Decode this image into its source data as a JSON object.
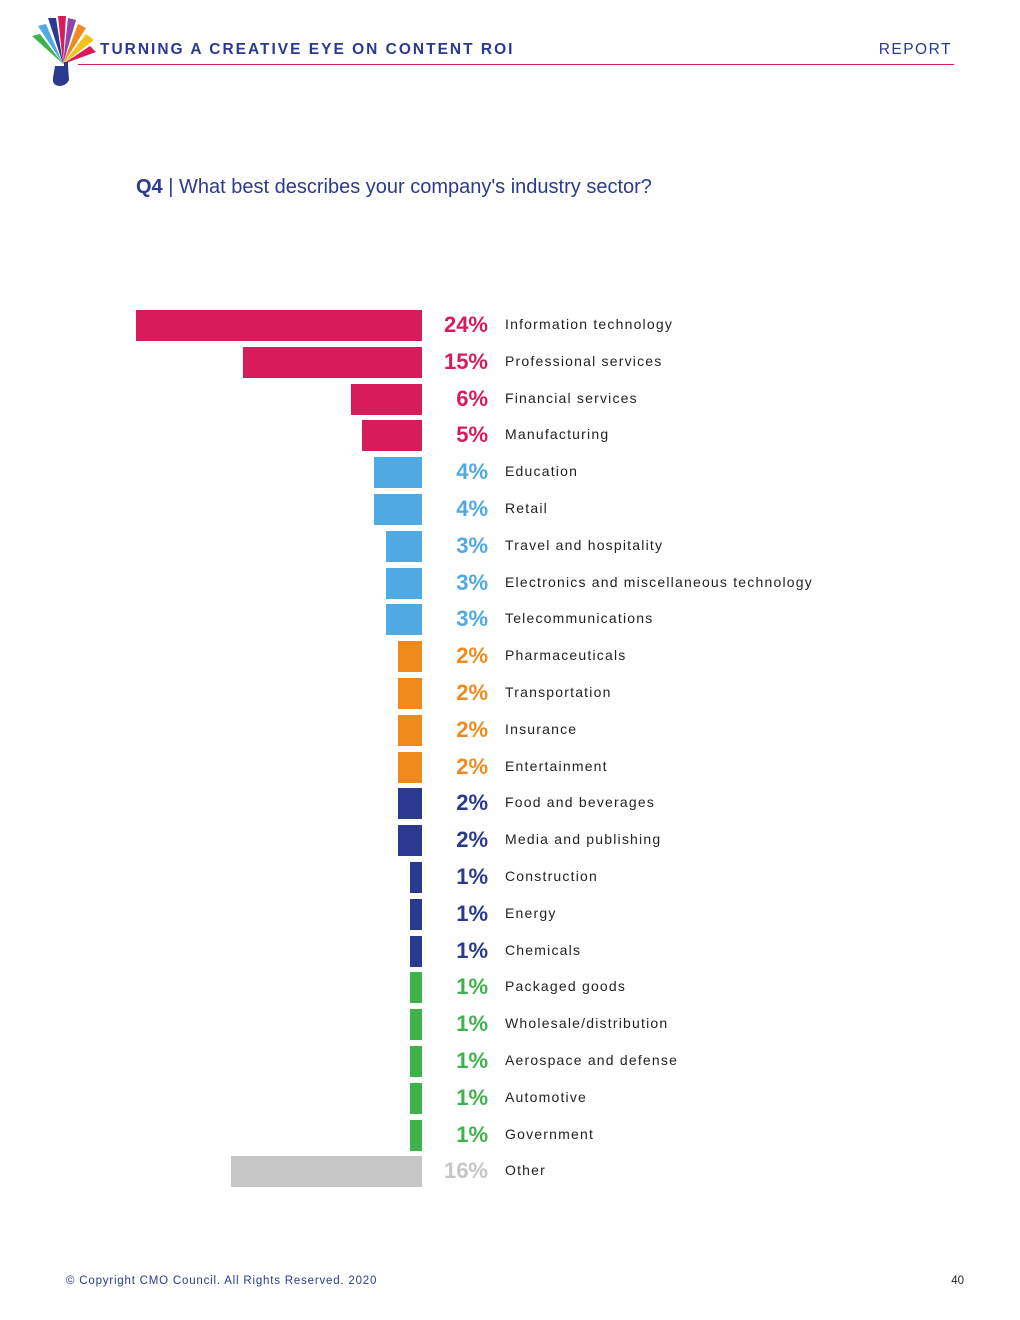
{
  "header": {
    "title": "TURNING A CREATIVE EYE ON CONTENT ROI",
    "section": "REPORT"
  },
  "question": {
    "number": "Q4",
    "separator": " | ",
    "text": "What best describes your company's industry sector?"
  },
  "footer": {
    "copyright": "© Copyright CMO Council. All Rights Reserved. 2020",
    "page": "40"
  },
  "colors": {
    "pink": "#d81b5a",
    "light_blue": "#4fa9e3",
    "orange": "#f08a1c",
    "navy": "#2b3990",
    "green": "#3fb24b",
    "gray": "#c6c6c6"
  },
  "logo": {
    "icon": "peacock-fan-logo-icon"
  },
  "chart_data": {
    "type": "bar",
    "orientation": "horizontal",
    "title": "What best describes your company's industry sector?",
    "unit": "%",
    "categories": [
      "Information technology",
      "Professional services",
      "Financial services",
      "Manufacturing",
      "Education",
      "Retail",
      "Travel and hospitality",
      "Electronics and miscellaneous technology",
      "Telecommunications",
      "Pharmaceuticals",
      "Transportation",
      "Insurance",
      "Entertainment",
      "Food and beverages",
      "Media and publishing",
      "Construction",
      "Energy",
      "Chemicals",
      "Packaged goods",
      "Wholesale/distribution",
      "Aerospace and defense",
      "Automotive",
      "Government",
      "Other"
    ],
    "values": [
      24,
      15,
      6,
      5,
      4,
      4,
      3,
      3,
      3,
      2,
      2,
      2,
      2,
      2,
      2,
      1,
      1,
      1,
      1,
      1,
      1,
      1,
      1,
      16
    ],
    "labels": [
      "24%",
      "15%",
      "6%",
      "5%",
      "4%",
      "4%",
      "3%",
      "3%",
      "3%",
      "2%",
      "2%",
      "2%",
      "2%",
      "2%",
      "2%",
      "1%",
      "1%",
      "1%",
      "1%",
      "1%",
      "1%",
      "1%",
      "1%",
      "16%"
    ],
    "color_groups": [
      "pink",
      "pink",
      "pink",
      "pink",
      "light_blue",
      "light_blue",
      "light_blue",
      "light_blue",
      "light_blue",
      "orange",
      "orange",
      "orange",
      "orange",
      "navy",
      "navy",
      "navy",
      "navy",
      "navy",
      "green",
      "green",
      "green",
      "green",
      "green",
      "gray"
    ]
  }
}
